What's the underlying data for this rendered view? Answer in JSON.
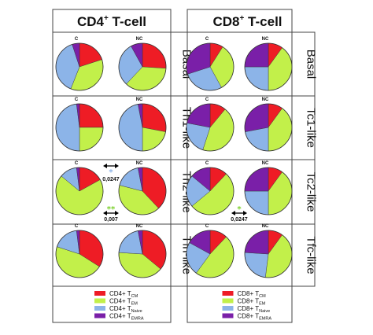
{
  "panels": [
    {
      "title_main": "CD4",
      "title_sup": "+",
      "title_rest": " T-cell"
    },
    {
      "title_main": "CD8",
      "title_sup": "+",
      "title_rest": " T-cell"
    }
  ],
  "conditions": {
    "cd4": [
      "Basal",
      "Th1-like",
      "Th2-like",
      "Tfh-like"
    ],
    "cd8": [
      "Basal",
      "Tc1-like",
      "Tc2-like",
      "Tfc-like"
    ]
  },
  "column_labels": [
    "C",
    "NC"
  ],
  "colors": {
    "TCM": "#ee1c25",
    "TEM": "#c2f04a",
    "TNaive": "#8cb4e8",
    "TEMRA": "#7a1fa8"
  },
  "legend": [
    [
      {
        "key": "TCM",
        "prefix": "CD4+ T",
        "sub": "CM"
      },
      {
        "key": "TEM",
        "prefix": "CD4+ T",
        "sub": "EM"
      },
      {
        "key": "TNaive",
        "prefix": "CD4+ T",
        "sub": "Naive"
      },
      {
        "key": "TEMRA",
        "prefix": "CD4+ T",
        "sub": "EMRA"
      }
    ],
    [
      {
        "key": "TCM",
        "prefix": "CD8+ T",
        "sub": "CM"
      },
      {
        "key": "TEM",
        "prefix": "CD8+ T",
        "sub": "EM"
      },
      {
        "key": "TNaive",
        "prefix": "CD8+ T",
        "sub": "Naive"
      },
      {
        "key": "TEMRA",
        "prefix": "CD8+ T",
        "sub": "EMRA"
      }
    ]
  ],
  "annotations": [
    {
      "panel": 0,
      "row": 2,
      "stars": "*",
      "star_color": "#8cb4e8",
      "value": "0,0247",
      "position": "top"
    },
    {
      "panel": 0,
      "row": 2,
      "stars": "**",
      "star_color": "#7ad02a",
      "value": "0,007",
      "position": "bottom"
    },
    {
      "panel": 1,
      "row": 2,
      "stars": "*",
      "star_color": "#7ad02a",
      "value": "0,0247",
      "position": "bottom"
    }
  ],
  "chart_data": {
    "type": "pie",
    "slice_order": [
      "TCM",
      "TEM",
      "TNaive",
      "TEMRA"
    ],
    "units": "percent",
    "pies": [
      {
        "panel": "CD4+ T-cell",
        "condition": "Basal",
        "group": "C",
        "values": {
          "TCM": 20,
          "TEM": 36,
          "TNaive": 39,
          "TEMRA": 5
        }
      },
      {
        "panel": "CD4+ T-cell",
        "condition": "Basal",
        "group": "NC",
        "values": {
          "TCM": 26,
          "TEM": 36,
          "TNaive": 30,
          "TEMRA": 8
        }
      },
      {
        "panel": "CD4+ T-cell",
        "condition": "Th1-like",
        "group": "C",
        "values": {
          "TCM": 25,
          "TEM": 25,
          "TNaive": 48,
          "TEMRA": 2
        }
      },
      {
        "panel": "CD4+ T-cell",
        "condition": "Th1-like",
        "group": "NC",
        "values": {
          "TCM": 28,
          "TEM": 22,
          "TNaive": 47,
          "TEMRA": 3
        }
      },
      {
        "panel": "CD4+ T-cell",
        "condition": "Th2-like",
        "group": "C",
        "values": {
          "TCM": 17,
          "TEM": 69,
          "TNaive": 12,
          "TEMRA": 2
        }
      },
      {
        "panel": "CD4+ T-cell",
        "condition": "Th2-like",
        "group": "NC",
        "values": {
          "TCM": 38,
          "TEM": 41,
          "TNaive": 18,
          "TEMRA": 3
        }
      },
      {
        "panel": "CD4+ T-cell",
        "condition": "Tfh-like",
        "group": "C",
        "values": {
          "TCM": 34,
          "TEM": 46,
          "TNaive": 18,
          "TEMRA": 2
        }
      },
      {
        "panel": "CD4+ T-cell",
        "condition": "Tfh-like",
        "group": "NC",
        "values": {
          "TCM": 36,
          "TEM": 40,
          "TNaive": 21,
          "TEMRA": 3
        }
      },
      {
        "panel": "CD8+ T-cell",
        "condition": "Basal",
        "group": "C",
        "values": {
          "TCM": 9,
          "TEM": 33,
          "TNaive": 28,
          "TEMRA": 30
        }
      },
      {
        "panel": "CD8+ T-cell",
        "condition": "Basal",
        "group": "NC",
        "values": {
          "TCM": 10,
          "TEM": 40,
          "TNaive": 25,
          "TEMRA": 25
        }
      },
      {
        "panel": "CD8+ T-cell",
        "condition": "Tc1-like",
        "group": "C",
        "values": {
          "TCM": 11,
          "TEM": 44,
          "TNaive": 23,
          "TEMRA": 22
        }
      },
      {
        "panel": "CD8+ T-cell",
        "condition": "Tc1-like",
        "group": "NC",
        "values": {
          "TCM": 10,
          "TEM": 40,
          "TNaive": 22,
          "TEMRA": 28
        }
      },
      {
        "panel": "CD8+ T-cell",
        "condition": "Tc2-like",
        "group": "C",
        "values": {
          "TCM": 12,
          "TEM": 52,
          "TNaive": 22,
          "TEMRA": 14
        }
      },
      {
        "panel": "CD8+ T-cell",
        "condition": "Tc2-like",
        "group": "NC",
        "values": {
          "TCM": 10,
          "TEM": 40,
          "TNaive": 25,
          "TEMRA": 25
        }
      },
      {
        "panel": "CD8+ T-cell",
        "condition": "Tfc-like",
        "group": "C",
        "values": {
          "TCM": 12,
          "TEM": 48,
          "TNaive": 23,
          "TEMRA": 17
        }
      },
      {
        "panel": "CD8+ T-cell",
        "condition": "Tfc-like",
        "group": "NC",
        "values": {
          "TCM": 10,
          "TEM": 42,
          "TNaive": 24,
          "TEMRA": 24
        }
      }
    ]
  }
}
